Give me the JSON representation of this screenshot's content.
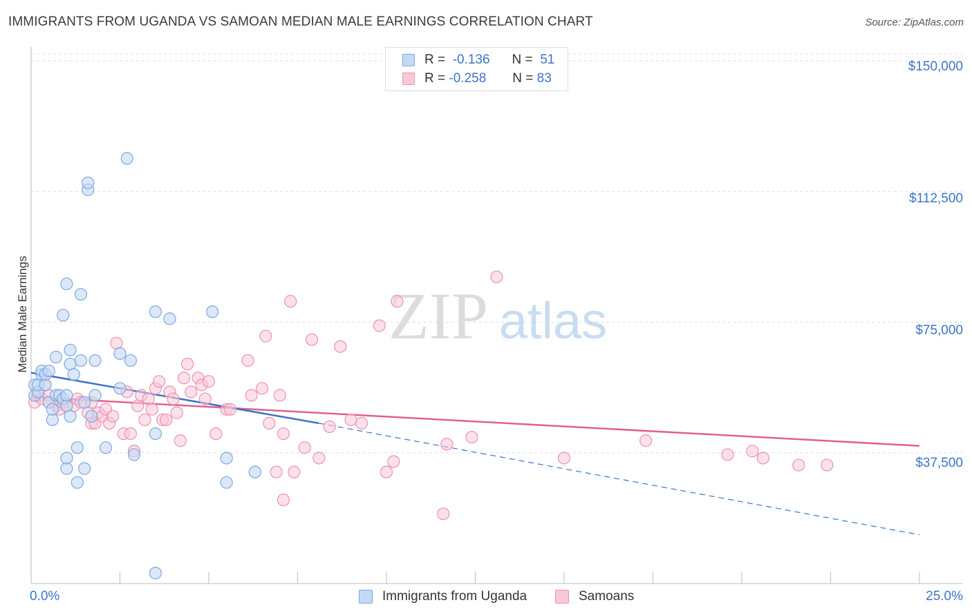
{
  "title": "IMMIGRANTS FROM UGANDA VS SAMOAN MEDIAN MALE EARNINGS CORRELATION CHART",
  "source": "Source: ZipAtlas.com",
  "watermark": {
    "zip": "ZIP",
    "atlas": "atlas"
  },
  "colors": {
    "blue": "#7aa7e0",
    "blue_fill": "#c5d9f4",
    "blue_line": "#3a73c9",
    "pink": "#ee8fb0",
    "pink_fill": "#f8c8d8",
    "pink_line": "#e0608f",
    "axis_text": "#3a73c9",
    "grid": "#dddddd"
  },
  "legend": {
    "series1": {
      "r_label": "R =",
      "r_value": "-0.136",
      "n_label": "N =",
      "n_value": "51"
    },
    "series2": {
      "r_label": "R =",
      "r_value": "-0.258",
      "n_label": "N =",
      "n_value": "83"
    }
  },
  "chart_data": {
    "type": "scatter",
    "title": "IMMIGRANTS FROM UGANDA VS SAMOAN MEDIAN MALE EARNINGS CORRELATION CHART",
    "xlabel": "",
    "ylabel": "Median Male Earnings",
    "xlim": [
      0,
      25
    ],
    "ylim": [
      0,
      152000
    ],
    "x_tick_labels": [
      "0.0%",
      "25.0%"
    ],
    "y_ticks": [
      37500,
      75000,
      112500,
      150000
    ],
    "y_tick_labels": [
      "$37,500",
      "$75,000",
      "$112,500",
      "$150,000"
    ],
    "grid": true,
    "series": [
      {
        "name": "Immigrants from Uganda",
        "color": "blue",
        "points": [
          [
            0.1,
            54000
          ],
          [
            0.1,
            57000
          ],
          [
            0.2,
            55000
          ],
          [
            0.2,
            57000
          ],
          [
            0.3,
            60000
          ],
          [
            0.3,
            61000
          ],
          [
            0.4,
            57000
          ],
          [
            0.4,
            60000
          ],
          [
            0.5,
            61000
          ],
          [
            0.5,
            52000
          ],
          [
            0.6,
            47000
          ],
          [
            0.6,
            50000
          ],
          [
            0.7,
            65000
          ],
          [
            0.7,
            54000
          ],
          [
            0.8,
            54000
          ],
          [
            0.9,
            77000
          ],
          [
            0.9,
            53000
          ],
          [
            1.0,
            33000
          ],
          [
            1.0,
            36000
          ],
          [
            1.0,
            51000
          ],
          [
            1.0,
            54000
          ],
          [
            1.0,
            86000
          ],
          [
            1.1,
            63000
          ],
          [
            1.1,
            67000
          ],
          [
            1.1,
            48000
          ],
          [
            1.2,
            60000
          ],
          [
            1.3,
            29000
          ],
          [
            1.3,
            39000
          ],
          [
            1.4,
            64000
          ],
          [
            1.4,
            83000
          ],
          [
            1.5,
            52000
          ],
          [
            1.5,
            33000
          ],
          [
            1.6,
            113000
          ],
          [
            1.6,
            115000
          ],
          [
            1.7,
            48000
          ],
          [
            1.8,
            54000
          ],
          [
            1.8,
            64000
          ],
          [
            2.1,
            39000
          ],
          [
            2.5,
            66000
          ],
          [
            2.5,
            56000
          ],
          [
            2.7,
            122000
          ],
          [
            2.8,
            64000
          ],
          [
            2.9,
            37000
          ],
          [
            3.5,
            43000
          ],
          [
            3.5,
            3000
          ],
          [
            3.5,
            78000
          ],
          [
            3.9,
            76000
          ],
          [
            5.1,
            78000
          ],
          [
            5.5,
            36000
          ],
          [
            5.5,
            29000
          ],
          [
            6.3,
            32000
          ]
        ],
        "trend": {
          "x_start": 0,
          "y_start": 60500,
          "x_solid_end": 8.1,
          "y_solid_end": 46000,
          "x_dash_end": 25,
          "y_dash_end": 14000
        }
      },
      {
        "name": "Samoans",
        "color": "pink",
        "points": [
          [
            0.1,
            52000
          ],
          [
            0.2,
            54000
          ],
          [
            0.3,
            53000
          ],
          [
            0.4,
            57000
          ],
          [
            0.5,
            54000
          ],
          [
            0.5,
            52000
          ],
          [
            0.7,
            51000
          ],
          [
            0.8,
            50000
          ],
          [
            0.9,
            52000
          ],
          [
            1.0,
            51000
          ],
          [
            1.2,
            51000
          ],
          [
            1.3,
            53000
          ],
          [
            1.4,
            52000
          ],
          [
            1.6,
            49000
          ],
          [
            1.7,
            52000
          ],
          [
            1.7,
            46000
          ],
          [
            1.8,
            46000
          ],
          [
            1.9,
            49000
          ],
          [
            2.0,
            48000
          ],
          [
            2.1,
            50000
          ],
          [
            2.2,
            46000
          ],
          [
            2.3,
            48000
          ],
          [
            2.4,
            69000
          ],
          [
            2.6,
            43000
          ],
          [
            2.7,
            55000
          ],
          [
            2.8,
            43000
          ],
          [
            2.9,
            38000
          ],
          [
            3.0,
            51000
          ],
          [
            3.1,
            54000
          ],
          [
            3.2,
            47000
          ],
          [
            3.3,
            53000
          ],
          [
            3.4,
            50000
          ],
          [
            3.5,
            56000
          ],
          [
            3.6,
            58000
          ],
          [
            3.7,
            47000
          ],
          [
            3.8,
            47000
          ],
          [
            3.9,
            55000
          ],
          [
            4.0,
            53000
          ],
          [
            4.1,
            49000
          ],
          [
            4.2,
            41000
          ],
          [
            4.3,
            59000
          ],
          [
            4.4,
            63000
          ],
          [
            4.5,
            55000
          ],
          [
            4.7,
            59000
          ],
          [
            4.8,
            57000
          ],
          [
            4.9,
            53000
          ],
          [
            5.0,
            58000
          ],
          [
            5.2,
            43000
          ],
          [
            5.5,
            50000
          ],
          [
            5.6,
            50000
          ],
          [
            6.1,
            64000
          ],
          [
            6.2,
            54000
          ],
          [
            6.5,
            56000
          ],
          [
            6.6,
            71000
          ],
          [
            6.7,
            46000
          ],
          [
            6.9,
            32000
          ],
          [
            7.0,
            54000
          ],
          [
            7.1,
            43000
          ],
          [
            7.1,
            24000
          ],
          [
            7.3,
            81000
          ],
          [
            7.4,
            32000
          ],
          [
            7.7,
            39000
          ],
          [
            7.9,
            70000
          ],
          [
            8.1,
            36000
          ],
          [
            8.4,
            45000
          ],
          [
            8.7,
            68000
          ],
          [
            9.0,
            47000
          ],
          [
            9.3,
            46000
          ],
          [
            9.8,
            74000
          ],
          [
            10.0,
            32000
          ],
          [
            10.2,
            35000
          ],
          [
            10.3,
            81000
          ],
          [
            11.6,
            20000
          ],
          [
            11.7,
            40000
          ],
          [
            12.4,
            42000
          ],
          [
            13.1,
            88000
          ],
          [
            15.0,
            36000
          ],
          [
            17.3,
            41000
          ],
          [
            19.6,
            37000
          ],
          [
            20.3,
            38000
          ],
          [
            20.6,
            36000
          ],
          [
            21.6,
            34000
          ],
          [
            22.4,
            34000
          ]
        ],
        "trend": {
          "x_start": 0,
          "y_start": 53500,
          "x_end": 25,
          "y_end": 39500
        }
      }
    ]
  },
  "bottom_legend": [
    "Immigrants from Uganda",
    "Samoans"
  ]
}
